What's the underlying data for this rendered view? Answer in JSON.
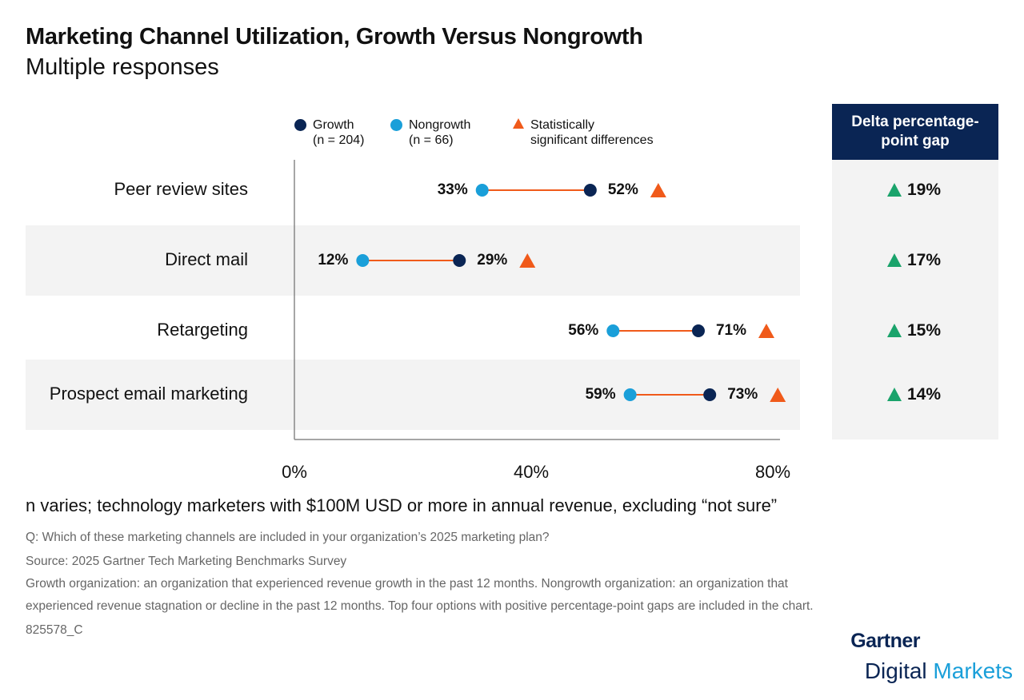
{
  "title": "Marketing Channel Utilization, Growth Versus Nongrowth",
  "subtitle": "Multiple responses",
  "legend": {
    "growth": "Growth",
    "growth_n": "(n = 204)",
    "nongrowth": "Nongrowth",
    "nongrowth_n": "(n = 66)",
    "sig": "Statistically",
    "sig2": "significant differences"
  },
  "colors": {
    "growth": "#0a2554",
    "nongrowth": "#1a9fd9",
    "connector": "#f05a1a",
    "significant": "#f05a1a",
    "delta_up": "#1aa36b",
    "delta_header": "#0a2554"
  },
  "delta_header": "Delta percentage-point gap",
  "chart_data": {
    "type": "dumbbell",
    "categories": [
      "Peer review sites",
      "Direct mail",
      "Retargeting",
      "Prospect email marketing"
    ],
    "series": [
      {
        "name": "Growth",
        "values": [
          52,
          29,
          71,
          73
        ]
      },
      {
        "name": "Nongrowth",
        "values": [
          33,
          12,
          56,
          59
        ]
      }
    ],
    "significant": [
      true,
      true,
      true,
      true
    ],
    "labels": {
      "growth": [
        "52%",
        "29%",
        "71%",
        "73%"
      ],
      "nongrowth": [
        "33%",
        "12%",
        "56%",
        "59%"
      ]
    },
    "delta": [
      "19%",
      "17%",
      "15%",
      "14%"
    ],
    "xlim": [
      0,
      80
    ],
    "xticks": [
      "0%",
      "40%",
      "80%"
    ]
  },
  "footnote": "n varies; technology marketers with $100M USD or more in annual revenue, excluding “not sure”",
  "notes": [
    "Q: Which of these marketing channels are included in your organization’s 2025 marketing plan?",
    "Source: 2025 Gartner Tech Marketing Benchmarks Survey",
    "Growth organization: an organization that experienced revenue growth in the past 12 months. Nongrowth organization: an organization that",
    "experienced revenue stagnation or decline in the past 12 months. Top four options with positive percentage-point gaps are included in the chart.",
    "825578_C"
  ],
  "logo": {
    "line1": "Gartner",
    "line2a": "Digital",
    "line2b": "Markets"
  }
}
